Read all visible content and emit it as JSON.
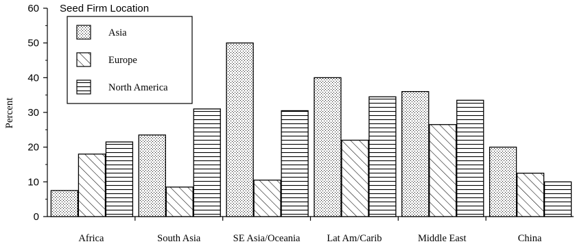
{
  "chart_data": {
    "type": "bar",
    "title": "",
    "xlabel": "",
    "ylabel": "Percent",
    "ylim": [
      0,
      60
    ],
    "yticks": [
      0,
      10,
      20,
      30,
      40,
      50,
      60
    ],
    "yticks_labels": [
      "0",
      "10",
      "20",
      "30",
      "40",
      "50",
      "60"
    ],
    "grid": false,
    "categories": [
      "Africa",
      "South Asia",
      "SE Asia/Oceania",
      "Lat Am/Carib",
      "Middle East",
      "China"
    ],
    "legend": {
      "title": "Seed Firm Location",
      "placement": "top-left"
    },
    "series": [
      {
        "name": "Asia",
        "pattern": "dots",
        "values": [
          7.5,
          23.5,
          50,
          40,
          36,
          20
        ]
      },
      {
        "name": "Europe",
        "pattern": "diagonal",
        "values": [
          18,
          8.5,
          10.5,
          22,
          26.5,
          12.5
        ]
      },
      {
        "name": "North America",
        "pattern": "horizontal",
        "values": [
          21.5,
          31,
          30.5,
          34.5,
          33.5,
          10
        ]
      }
    ],
    "colors": {
      "ink": "#000000",
      "fill": "#ffffff"
    }
  }
}
